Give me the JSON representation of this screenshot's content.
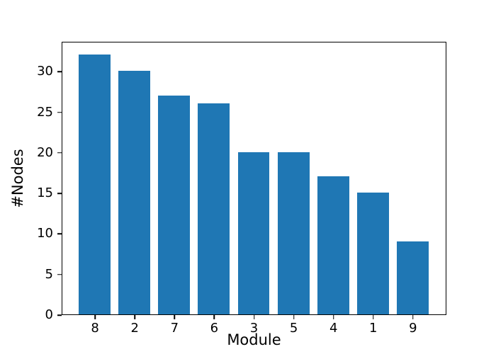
{
  "chart_data": {
    "type": "bar",
    "title": "",
    "xlabel": "Module",
    "ylabel": "#Nodes",
    "categories": [
      "8",
      "2",
      "7",
      "6",
      "3",
      "5",
      "4",
      "1",
      "9"
    ],
    "values": [
      32,
      30,
      27,
      26,
      20,
      20,
      17,
      15,
      9
    ],
    "yticks": [
      0,
      5,
      10,
      15,
      20,
      25,
      30
    ],
    "ylim": [
      0,
      33.7
    ],
    "bar_color": "#1f77b4",
    "axis_color": "#000000",
    "background_color": "#ffffff",
    "grid": "off",
    "legend": "none",
    "bar_width_fraction": 0.8
  }
}
